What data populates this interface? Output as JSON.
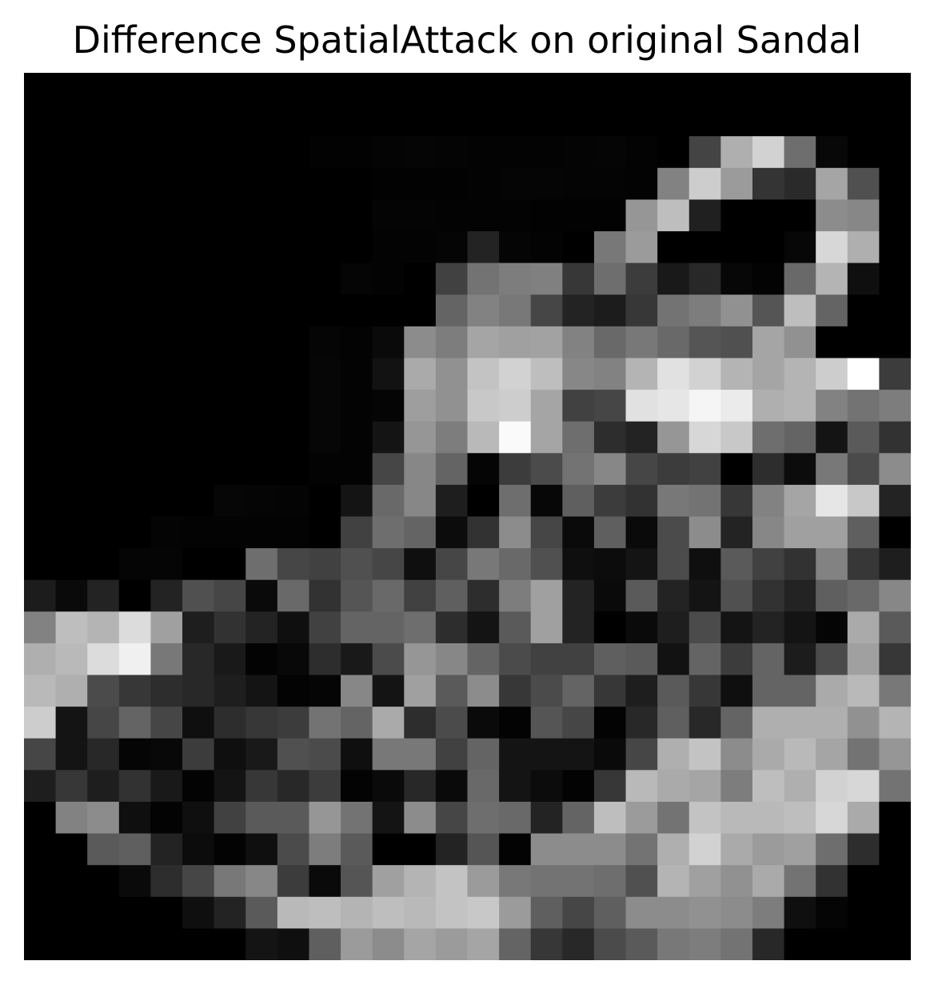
{
  "chart_data": {
    "type": "heatmap",
    "title": "Difference SpatialAttack on original Sandal",
    "colormap": "gray",
    "vmin": 0,
    "vmax": 255,
    "axes_visible": false,
    "grid": false,
    "rows": 28,
    "cols": 28,
    "values": [
      [
        0,
        0,
        0,
        0,
        0,
        0,
        0,
        0,
        0,
        0,
        0,
        0,
        0,
        0,
        0,
        0,
        0,
        0,
        0,
        0,
        0,
        0,
        0,
        0,
        0,
        0,
        0,
        0
      ],
      [
        0,
        0,
        0,
        0,
        0,
        0,
        0,
        0,
        0,
        0,
        0,
        0,
        0,
        0,
        0,
        0,
        0,
        0,
        0,
        0,
        0,
        0,
        0,
        0,
        0,
        0,
        0,
        0
      ],
      [
        0,
        0,
        0,
        0,
        0,
        0,
        0,
        0,
        0,
        2,
        2,
        4,
        5,
        4,
        3,
        3,
        3,
        4,
        5,
        3,
        0,
        68,
        175,
        210,
        110,
        8,
        0,
        0
      ],
      [
        0,
        0,
        0,
        0,
        0,
        0,
        0,
        0,
        0,
        0,
        0,
        2,
        2,
        2,
        3,
        5,
        5,
        4,
        4,
        3,
        130,
        205,
        155,
        52,
        42,
        165,
        80,
        0
      ],
      [
        0,
        0,
        0,
        0,
        0,
        0,
        0,
        0,
        0,
        0,
        0,
        4,
        4,
        3,
        3,
        3,
        2,
        2,
        2,
        150,
        190,
        32,
        0,
        0,
        0,
        140,
        135,
        0
      ],
      [
        0,
        0,
        0,
        0,
        0,
        0,
        0,
        0,
        0,
        0,
        0,
        3,
        3,
        5,
        35,
        5,
        3,
        0,
        120,
        155,
        0,
        0,
        0,
        0,
        7,
        215,
        175,
        0
      ],
      [
        0,
        0,
        0,
        0,
        0,
        0,
        0,
        0,
        0,
        0,
        5,
        3,
        0,
        65,
        115,
        125,
        128,
        55,
        110,
        60,
        25,
        40,
        7,
        3,
        105,
        180,
        15,
        0
      ],
      [
        0,
        0,
        0,
        0,
        0,
        0,
        0,
        0,
        0,
        0,
        0,
        0,
        0,
        100,
        130,
        120,
        70,
        35,
        28,
        55,
        115,
        125,
        145,
        85,
        190,
        100,
        0,
        0
      ],
      [
        0,
        0,
        0,
        0,
        0,
        0,
        0,
        0,
        0,
        5,
        3,
        10,
        140,
        125,
        165,
        160,
        162,
        130,
        105,
        120,
        105,
        85,
        80,
        165,
        145,
        0,
        0,
        0
      ],
      [
        0,
        0,
        0,
        0,
        0,
        0,
        0,
        0,
        0,
        6,
        3,
        18,
        170,
        145,
        195,
        210,
        190,
        135,
        130,
        180,
        225,
        210,
        180,
        165,
        180,
        205,
        255,
        60
      ],
      [
        0,
        0,
        0,
        0,
        0,
        0,
        0,
        0,
        0,
        6,
        3,
        5,
        158,
        145,
        200,
        205,
        165,
        65,
        70,
        225,
        230,
        245,
        235,
        175,
        180,
        130,
        115,
        125
      ],
      [
        0,
        0,
        0,
        0,
        0,
        0,
        0,
        0,
        0,
        6,
        3,
        20,
        150,
        125,
        185,
        250,
        165,
        110,
        45,
        35,
        150,
        215,
        200,
        110,
        100,
        20,
        90,
        50
      ],
      [
        0,
        0,
        0,
        0,
        0,
        0,
        0,
        0,
        0,
        3,
        3,
        70,
        135,
        100,
        5,
        60,
        75,
        115,
        135,
        70,
        60,
        65,
        0,
        45,
        12,
        120,
        75,
        140
      ],
      [
        0,
        0,
        0,
        0,
        0,
        0,
        6,
        5,
        4,
        0,
        20,
        105,
        135,
        30,
        0,
        110,
        7,
        95,
        60,
        50,
        120,
        115,
        55,
        130,
        165,
        230,
        200,
        35
      ],
      [
        0,
        0,
        0,
        0,
        4,
        3,
        3,
        3,
        3,
        0,
        65,
        110,
        100,
        12,
        50,
        140,
        70,
        10,
        95,
        10,
        75,
        140,
        35,
        135,
        160,
        160,
        95,
        0
      ],
      [
        0,
        0,
        0,
        5,
        5,
        0,
        0,
        110,
        70,
        65,
        80,
        70,
        15,
        70,
        120,
        105,
        80,
        15,
        12,
        20,
        75,
        15,
        90,
        65,
        50,
        130,
        55,
        30
      ],
      [
        28,
        10,
        35,
        0,
        35,
        80,
        70,
        10,
        105,
        50,
        85,
        105,
        65,
        95,
        45,
        125,
        160,
        35,
        10,
        90,
        35,
        20,
        80,
        50,
        35,
        95,
        105,
        135
      ],
      [
        130,
        190,
        180,
        220,
        160,
        30,
        50,
        35,
        15,
        65,
        100,
        100,
        110,
        45,
        20,
        90,
        160,
        35,
        0,
        10,
        30,
        75,
        20,
        35,
        20,
        5,
        170,
        90
      ],
      [
        175,
        185,
        220,
        240,
        120,
        40,
        25,
        3,
        8,
        45,
        25,
        75,
        150,
        135,
        100,
        75,
        65,
        65,
        95,
        90,
        18,
        100,
        60,
        100,
        28,
        75,
        160,
        55
      ],
      [
        185,
        175,
        75,
        55,
        45,
        40,
        30,
        20,
        3,
        5,
        135,
        20,
        160,
        90,
        140,
        55,
        75,
        100,
        55,
        30,
        90,
        55,
        15,
        100,
        100,
        170,
        185,
        120
      ],
      [
        205,
        20,
        70,
        100,
        70,
        15,
        45,
        55,
        60,
        115,
        100,
        170,
        45,
        75,
        10,
        3,
        85,
        70,
        3,
        40,
        95,
        40,
        100,
        175,
        175,
        175,
        145,
        180
      ],
      [
        70,
        20,
        40,
        5,
        8,
        60,
        15,
        25,
        80,
        75,
        15,
        120,
        120,
        65,
        100,
        20,
        20,
        20,
        10,
        70,
        175,
        195,
        140,
        170,
        185,
        165,
        115,
        150
      ],
      [
        30,
        55,
        30,
        50,
        25,
        3,
        20,
        55,
        40,
        60,
        3,
        10,
        40,
        10,
        105,
        20,
        12,
        3,
        55,
        185,
        170,
        165,
        125,
        190,
        175,
        210,
        215,
        115
      ],
      [
        0,
        130,
        140,
        15,
        3,
        15,
        65,
        90,
        90,
        150,
        115,
        20,
        140,
        70,
        110,
        105,
        35,
        100,
        190,
        155,
        115,
        195,
        185,
        185,
        190,
        215,
        170,
        0
      ],
      [
        0,
        0,
        90,
        95,
        35,
        12,
        3,
        15,
        75,
        125,
        90,
        0,
        0,
        35,
        85,
        3,
        140,
        140,
        140,
        115,
        175,
        210,
        170,
        155,
        160,
        110,
        45,
        0
      ],
      [
        0,
        0,
        0,
        10,
        45,
        70,
        120,
        135,
        60,
        10,
        85,
        160,
        180,
        195,
        155,
        120,
        115,
        115,
        110,
        80,
        180,
        160,
        145,
        170,
        115,
        50,
        0,
        0
      ],
      [
        0,
        0,
        0,
        0,
        0,
        15,
        35,
        90,
        185,
        190,
        180,
        190,
        185,
        195,
        200,
        155,
        95,
        70,
        95,
        140,
        140,
        145,
        140,
        125,
        15,
        5,
        0,
        0
      ],
      [
        0,
        0,
        0,
        0,
        0,
        0,
        0,
        20,
        15,
        95,
        155,
        140,
        165,
        155,
        165,
        100,
        55,
        40,
        75,
        90,
        120,
        125,
        115,
        40,
        0,
        0,
        0,
        0
      ]
    ]
  }
}
